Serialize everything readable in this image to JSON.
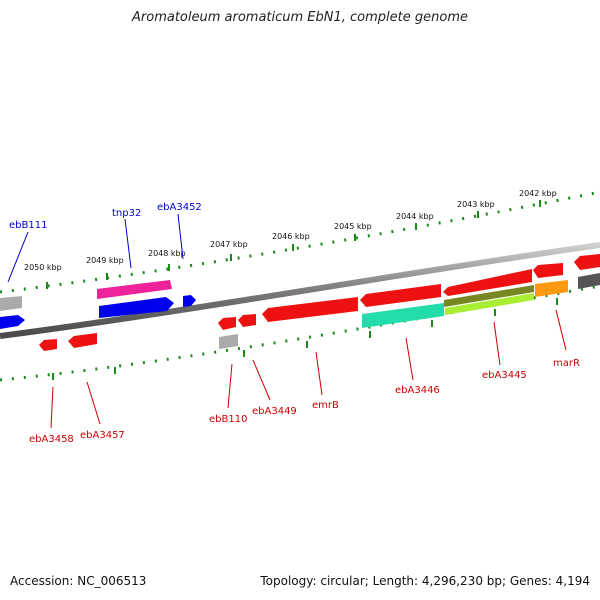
{
  "title": "Aromatoleum aromaticum EbN1, complete genome",
  "footer": {
    "accession": "Accession: NC_006513",
    "summary": "Topology: circular; Length: 4,296,230 bp; Genes: 4,194"
  },
  "scale_labels": [
    "2050 kbp",
    "2049 kbp",
    "2048 kbp",
    "2047 kbp",
    "2046 kbp",
    "2045 kbp",
    "2044 kbp",
    "2043 kbp",
    "2042 kbp"
  ],
  "gene_labels_upper": [
    "ebB111",
    "tnp32",
    "ebA3452"
  ],
  "gene_labels_lower": [
    "ebA3458",
    "ebA3457",
    "ebB110",
    "ebA3449",
    "emrB",
    "ebA3446",
    "ebA3445",
    "marR"
  ],
  "colors": {
    "backbone": "#808080",
    "forward_label": "#0000cc",
    "reverse_label": "#cc0000",
    "tick": "#1a8a1a",
    "gene_red": "#ee1111",
    "gene_blue": "#0000ee",
    "gene_magenta": "#ee2299",
    "gene_teal": "#22ddaa",
    "gene_lime": "#aaee33",
    "gene_olive": "#778822",
    "gene_orange": "#ff9911",
    "gene_gray": "#aaaaaa",
    "gene_dark": "#555555"
  }
}
